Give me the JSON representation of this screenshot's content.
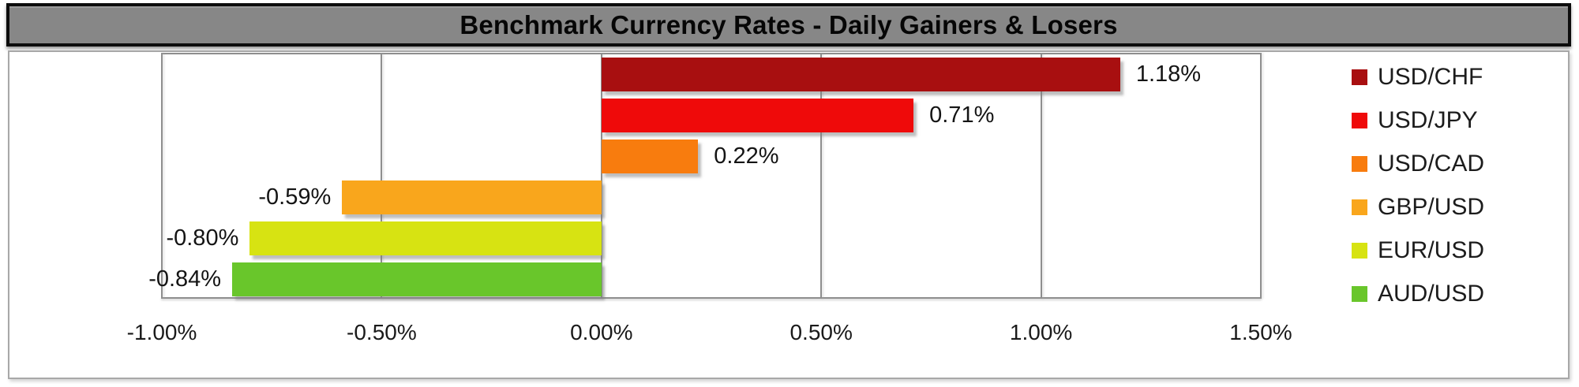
{
  "title": "Benchmark Currency Rates - Daily Gainers & Losers",
  "chart_data": {
    "type": "bar",
    "orientation": "horizontal",
    "title": "Benchmark Currency Rates - Daily Gainers & Losers",
    "categories": [
      "USD/CHF",
      "USD/JPY",
      "USD/CAD",
      "GBP/USD",
      "EUR/USD",
      "AUD/USD"
    ],
    "values": [
      1.18,
      0.71,
      0.22,
      -0.59,
      -0.8,
      -0.84
    ],
    "value_labels": [
      "1.18%",
      "0.71%",
      "0.22%",
      "-0.59%",
      "-0.80%",
      "-0.84%"
    ],
    "colors": [
      "#A80F10",
      "#EF0A0A",
      "#F87C0E",
      "#F9A61C",
      "#D7E312",
      "#69C62B"
    ],
    "legend": [
      "USD/CHF",
      "USD/JPY",
      "USD/CAD",
      "GBP/USD",
      "EUR/USD",
      "AUD/USD"
    ],
    "legend_position": "right",
    "x_ticks": [
      "-1.00%",
      "-0.50%",
      "0.00%",
      "0.50%",
      "1.00%",
      "1.50%"
    ],
    "x_tick_values": [
      -1.0,
      -0.5,
      0.0,
      0.5,
      1.0,
      1.5
    ],
    "xlim": [
      -1.0,
      1.5
    ],
    "grid": true,
    "background": "#ffffff",
    "title_bar_color": "#878787"
  }
}
